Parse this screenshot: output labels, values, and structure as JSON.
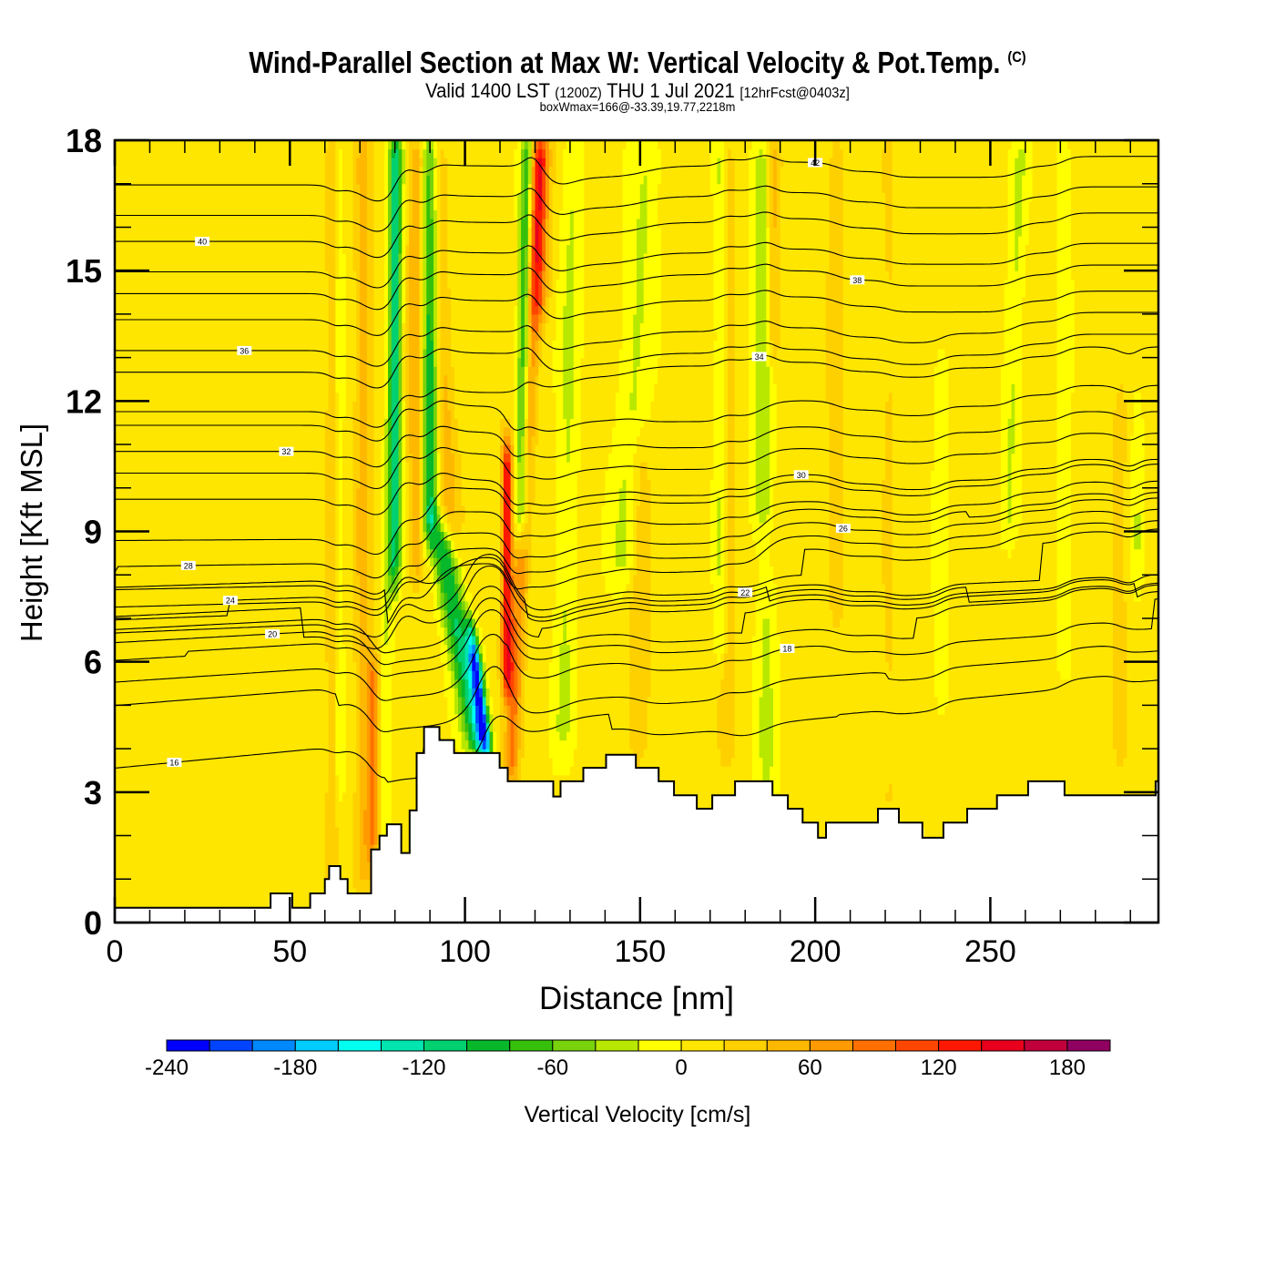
{
  "header": {
    "title": "Wind-Parallel Section at Max W: Vertical Velocity & Pot.Temp.",
    "copyright": "(C)",
    "valid_prefix": "Valid 1400 LST",
    "valid_utc": "(1200Z)",
    "valid_date": "THU 1 Jul 2021",
    "forecast": "[12hrFcst@0403z]",
    "boxwmax": "boxWmax=166@-33.39,19.77,2218m"
  },
  "chart_data": {
    "type": "heatmap",
    "title": "Wind-Parallel Section at Max W: Vertical Velocity & Pot.Temp.",
    "xlabel": "Distance [nm]",
    "ylabel": "Height [Kft MSL]",
    "xlim": [
      0,
      298
    ],
    "ylim": [
      0,
      18
    ],
    "xticks": [
      0,
      50,
      100,
      150,
      200,
      250
    ],
    "xtick_labels": [
      "0",
      "50",
      "100",
      "150",
      "200",
      "250"
    ],
    "x_minor_step": 10,
    "yticks": [
      0,
      3,
      6,
      9,
      12,
      15,
      18
    ],
    "ytick_labels": [
      "0",
      "3",
      "6",
      "9",
      "12",
      "15",
      "18"
    ],
    "y_minor_step": 1,
    "colorbar": {
      "label": "Vertical Velocity [cm/s]",
      "min": -240,
      "max": 200,
      "step": 20,
      "tick_values": [
        -240,
        -180,
        -120,
        -60,
        0,
        60,
        120,
        180
      ],
      "tick_labels": [
        "-240",
        "-180",
        "-120",
        "-60",
        "0",
        "60",
        "120",
        "180"
      ],
      "colors": [
        "#0000ff",
        "#0044ff",
        "#0088ff",
        "#00ccff",
        "#00fff0",
        "#00e4b0",
        "#00d070",
        "#06b82a",
        "#36c00c",
        "#78d20c",
        "#b8e800",
        "#ffff00",
        "#ffe600",
        "#ffd000",
        "#ffb800",
        "#ff9a00",
        "#ff7000",
        "#ff4600",
        "#ff1800",
        "#e8001c",
        "#c0003a",
        "#900060"
      ]
    },
    "terrain_kft": [
      [
        0,
        0.34
      ],
      [
        44.5,
        0.67
      ],
      [
        50.7,
        0.34
      ],
      [
        55.8,
        0.67
      ],
      [
        60,
        1.0
      ],
      [
        61.2,
        1.3
      ],
      [
        64.4,
        1.0
      ],
      [
        66.5,
        0.67
      ],
      [
        73.2,
        1.68
      ],
      [
        75.6,
        2.0
      ],
      [
        77.7,
        2.26
      ],
      [
        81.8,
        1.6
      ],
      [
        84.2,
        2.58
      ],
      [
        86.2,
        3.9
      ],
      [
        88.3,
        4.5
      ],
      [
        92.7,
        4.2
      ],
      [
        96.9,
        3.9
      ],
      [
        109.9,
        3.56
      ],
      [
        112.2,
        3.25
      ],
      [
        125.2,
        2.9
      ],
      [
        127.3,
        3.25
      ],
      [
        133.8,
        3.56
      ],
      [
        140.3,
        3.86
      ],
      [
        148.8,
        3.56
      ],
      [
        155.3,
        3.25
      ],
      [
        159.7,
        2.93
      ],
      [
        166.2,
        2.62
      ],
      [
        170.6,
        2.93
      ],
      [
        177.1,
        3.25
      ],
      [
        187.8,
        2.93
      ],
      [
        192.2,
        2.62
      ],
      [
        196.4,
        2.3
      ],
      [
        200.8,
        1.95
      ],
      [
        203.1,
        2.3
      ],
      [
        217.9,
        2.62
      ],
      [
        223.9,
        2.3
      ],
      [
        230.6,
        1.95
      ],
      [
        236.6,
        2.3
      ],
      [
        243.4,
        2.62
      ],
      [
        251.9,
        2.93
      ],
      [
        260.8,
        3.25
      ],
      [
        271.2,
        2.93
      ],
      [
        297.2,
        3.25
      ],
      [
        298,
        3.25
      ]
    ],
    "w_features": [
      {
        "x": 62,
        "z0": 0,
        "z1": 18,
        "tilt": 0.0,
        "w": 30,
        "width": 1.6
      },
      {
        "x": 64,
        "z0": 3,
        "z1": 18,
        "tilt": 0.0,
        "w": -20,
        "width": 1.5
      },
      {
        "x": 71,
        "z0": 1,
        "z1": 18,
        "tilt": 0.0,
        "w": 40,
        "width": 2.5
      },
      {
        "x": 76,
        "z0": 1,
        "z1": 18,
        "tilt": 0.3,
        "w": -30,
        "width": 2.0
      },
      {
        "x": 74,
        "z0": 1.5,
        "z1": 6,
        "tilt": 0.0,
        "w": 70,
        "width": 2.0
      },
      {
        "x": 80,
        "z0": 8,
        "z1": 18,
        "tilt": 0.0,
        "w": -100,
        "width": 1.8
      },
      {
        "x": 86,
        "z0": 8,
        "z1": 18,
        "tilt": 0.0,
        "w": 50,
        "width": 2.4
      },
      {
        "x": 90,
        "z0": 9,
        "z1": 18,
        "tilt": 0.0,
        "w": -110,
        "width": 2.2
      },
      {
        "x": 96,
        "z0": 9,
        "z1": 18,
        "tilt": -0.6,
        "w": 40,
        "width": 3.0
      },
      {
        "x": 104,
        "z0": 3.9,
        "z1": 9,
        "tilt": -2.2,
        "w": -110,
        "width": 3.5
      },
      {
        "x": 106,
        "z0": 3.9,
        "z1": 6.5,
        "tilt": -1.5,
        "w": -190,
        "width": 1.8
      },
      {
        "x": 112,
        "z0": 5.5,
        "z1": 11,
        "tilt": 0.0,
        "w": 130,
        "width": 1.6
      },
      {
        "x": 113,
        "z0": 3.3,
        "z1": 18,
        "tilt": 0.6,
        "w": 70,
        "width": 2.2
      },
      {
        "x": 116,
        "z0": 9,
        "z1": 18,
        "tilt": 0.2,
        "w": -100,
        "width": 1.8
      },
      {
        "x": 121,
        "z0": 14,
        "z1": 18,
        "tilt": 0.0,
        "w": 70,
        "width": 3.0
      },
      {
        "x": 128,
        "z0": 4,
        "z1": 18,
        "tilt": 0.2,
        "w": -30,
        "width": 3.0
      },
      {
        "x": 145,
        "z0": 8,
        "z1": 18,
        "tilt": 0.7,
        "w": -30,
        "width": 4.5
      },
      {
        "x": 150,
        "z0": 4,
        "z1": 11,
        "tilt": 0.0,
        "w": 30,
        "width": 3.0
      },
      {
        "x": 173,
        "z0": 6,
        "z1": 18,
        "tilt": 0.0,
        "w": -35,
        "width": 1.8
      },
      {
        "x": 175,
        "z0": 4,
        "z1": 18,
        "tilt": 0.0,
        "w": 25,
        "width": 2.5
      },
      {
        "x": 185,
        "z0": 9,
        "z1": 18,
        "tilt": 0.0,
        "w": -45,
        "width": 3.0
      },
      {
        "x": 186,
        "z0": 3,
        "z1": 8,
        "tilt": 0.0,
        "w": -30,
        "width": 3.0
      },
      {
        "x": 188,
        "z0": 13,
        "z1": 18,
        "tilt": 0.0,
        "w": 45,
        "width": 2.0
      },
      {
        "x": 206,
        "z0": 7,
        "z1": 18,
        "tilt": 0.0,
        "w": 25,
        "width": 2.5
      },
      {
        "x": 221,
        "z0": 2.5,
        "z1": 18,
        "tilt": 0.0,
        "w": 15,
        "width": 2.0
      },
      {
        "x": 236,
        "z0": 5,
        "z1": 13,
        "tilt": 0.0,
        "w": -25,
        "width": 2.0
      },
      {
        "x": 255,
        "z0": 9,
        "z1": 18,
        "tilt": 0.4,
        "w": -30,
        "width": 2.5
      },
      {
        "x": 271,
        "z0": 6,
        "z1": 18,
        "tilt": 0.0,
        "w": -25,
        "width": 2.0
      },
      {
        "x": 287,
        "z0": 4,
        "z1": 12,
        "tilt": 0.0,
        "w": 25,
        "width": 2.0
      },
      {
        "x": 292,
        "z0": 8,
        "z1": 12,
        "tilt": 0.0,
        "w": -25,
        "width": 1.5
      }
    ],
    "theta_levels": [
      16,
      17,
      18,
      19,
      20,
      21,
      22,
      23,
      24,
      25,
      26,
      27,
      28,
      29,
      30,
      31,
      32,
      33,
      34,
      35,
      36,
      37,
      38,
      39,
      40,
      41,
      42
    ],
    "theta_label_values": [
      "16",
      "18",
      "20",
      "22",
      "24",
      "26",
      "28",
      "30",
      "32",
      "34",
      "36",
      "38",
      "40",
      "42"
    ],
    "theta_left_heights_kft": [
      3.4,
      4.6,
      5.4,
      5.9,
      6.2,
      6.5,
      6.8,
      7.1,
      7.4,
      7.8,
      8.2,
      8.6,
      9.0,
      9.6,
      10.2,
      10.8,
      11.3,
      11.9,
      12.5,
      13.1,
      13.6,
      14.2,
      14.8,
      15.3,
      16.0,
      16.6,
      17.3
    ]
  }
}
